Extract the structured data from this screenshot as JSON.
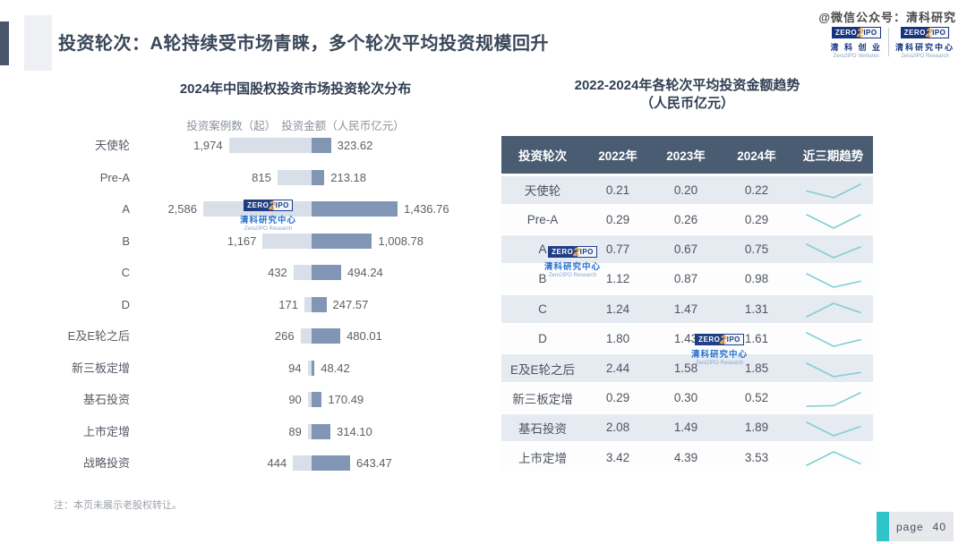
{
  "page": {
    "title": "投资轮次：A轮持续受市场青睐，多个轮次平均投资规模回升",
    "watermark_handle": "@微信公众号：清科研究",
    "note": "注：本页未展示老股权转让。",
    "page_label": "page",
    "page_number": "40"
  },
  "logos": {
    "zero": "ZERO",
    "two": "2",
    "ipo": "IPO",
    "ventures_cn": "清 科 创 业",
    "ventures_en": "Zero2IPO Ventures",
    "research_cn": "清科研究中心",
    "research_en": "Zero2IPO Research"
  },
  "colors": {
    "accent_teal": "#2ec4c9",
    "bar_light": "#d9dfe9",
    "bar_dark": "#8096b4",
    "table_header_bg": "#4a5c72",
    "table_row_alt_bg": "#e6eaf1",
    "trend_line": "#7fd0d4",
    "title_color": "#3a4759",
    "logo_blue": "#16357f",
    "logo_orange": "#f0a22e"
  },
  "chart_data": [
    {
      "type": "bar",
      "title": "2024年中国股权投资市场投资轮次分布",
      "legend": [
        "投资案例数（起）",
        "投资金额（人民币亿元）"
      ],
      "categories": [
        "天使轮",
        "Pre-A",
        "A",
        "B",
        "C",
        "D",
        "E及E轮之后",
        "新三板定增",
        "基石投资",
        "上市定增",
        "战略投资"
      ],
      "series": [
        {
          "name": "投资案例数（起）",
          "values": [
            1974,
            815,
            2586,
            1167,
            432,
            171,
            266,
            94,
            90,
            89,
            444
          ]
        },
        {
          "name": "投资金额（人民币亿元）",
          "values": [
            323.62,
            213.18,
            1436.76,
            1008.78,
            494.24,
            247.57,
            480.01,
            48.42,
            170.49,
            314.1,
            643.47
          ]
        }
      ],
      "display_counts": [
        "1,974",
        "815",
        "2,586",
        "1,167",
        "432",
        "171",
        "266",
        "94",
        "90",
        "89",
        "444"
      ],
      "display_amounts": [
        "323.62",
        "213.18",
        "1,436.76",
        "1,008.78",
        "494.24",
        "247.57",
        "480.01",
        "48.42",
        "170.49",
        "314.10",
        "643.47"
      ],
      "legend_position": "top",
      "grid": false
    },
    {
      "type": "table",
      "title": "2022-2024年各轮次平均投资金额趋势",
      "subtitle": "（人民币亿元）",
      "columns": [
        "投资轮次",
        "2022年",
        "2023年",
        "2024年",
        "近三期趋势"
      ],
      "rows": [
        {
          "label": "天使轮",
          "values": [
            "0.21",
            "0.20",
            "0.22"
          ]
        },
        {
          "label": "Pre-A",
          "values": [
            "0.29",
            "0.26",
            "0.29"
          ]
        },
        {
          "label": "A",
          "values": [
            "0.77",
            "0.67",
            "0.75"
          ]
        },
        {
          "label": "B",
          "values": [
            "1.12",
            "0.87",
            "0.98"
          ]
        },
        {
          "label": "C",
          "values": [
            "1.24",
            "1.47",
            "1.31"
          ]
        },
        {
          "label": "D",
          "values": [
            "1.80",
            "1.43",
            "1.61"
          ]
        },
        {
          "label": "E及E轮之后",
          "values": [
            "2.44",
            "1.58",
            "1.85"
          ]
        },
        {
          "label": "新三板定增",
          "values": [
            "0.29",
            "0.30",
            "0.52"
          ]
        },
        {
          "label": "基石投资",
          "values": [
            "2.08",
            "1.49",
            "1.89"
          ]
        },
        {
          "label": "上市定增",
          "values": [
            "3.42",
            "4.39",
            "3.53"
          ]
        }
      ],
      "trend_column": "sparkline"
    }
  ]
}
